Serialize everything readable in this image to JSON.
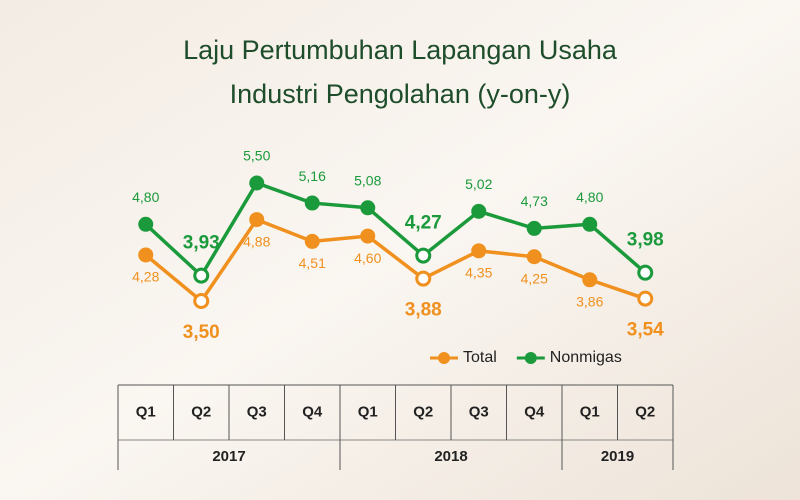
{
  "chart_data": {
    "type": "line",
    "title": [
      "Laju Pertumbuhan Lapangan Usaha",
      "Industri Pengolahan (y-on-y)"
    ],
    "categories": [
      "Q1",
      "Q2",
      "Q3",
      "Q4",
      "Q1",
      "Q2",
      "Q3",
      "Q4",
      "Q1",
      "Q2"
    ],
    "years": [
      "2017",
      "2018",
      "2019"
    ],
    "highlight": [
      1,
      5,
      9
    ],
    "legend": "bottom-right",
    "series": [
      {
        "name": "Total",
        "color": "#f0901e",
        "label_side": "below",
        "values": [
          4.28,
          3.5,
          4.88,
          4.51,
          4.6,
          3.88,
          4.35,
          4.25,
          3.86,
          3.54
        ],
        "value_labels": [
          "4,28",
          "3,50",
          "4,88",
          "4,51",
          "4,60",
          "3,88",
          "4,35",
          "4,25",
          "3,86",
          "3,54"
        ]
      },
      {
        "name": "Nonmigas",
        "color": "#1b9a3c",
        "label_side": "above",
        "values": [
          4.8,
          3.93,
          5.5,
          5.16,
          5.08,
          4.27,
          5.02,
          4.73,
          4.8,
          3.98
        ],
        "value_labels": [
          "4,80",
          "3,93",
          "5,50",
          "5,16",
          "5,08",
          "4,27",
          "5,02",
          "4,73",
          "4,80",
          "3,98"
        ]
      }
    ]
  }
}
